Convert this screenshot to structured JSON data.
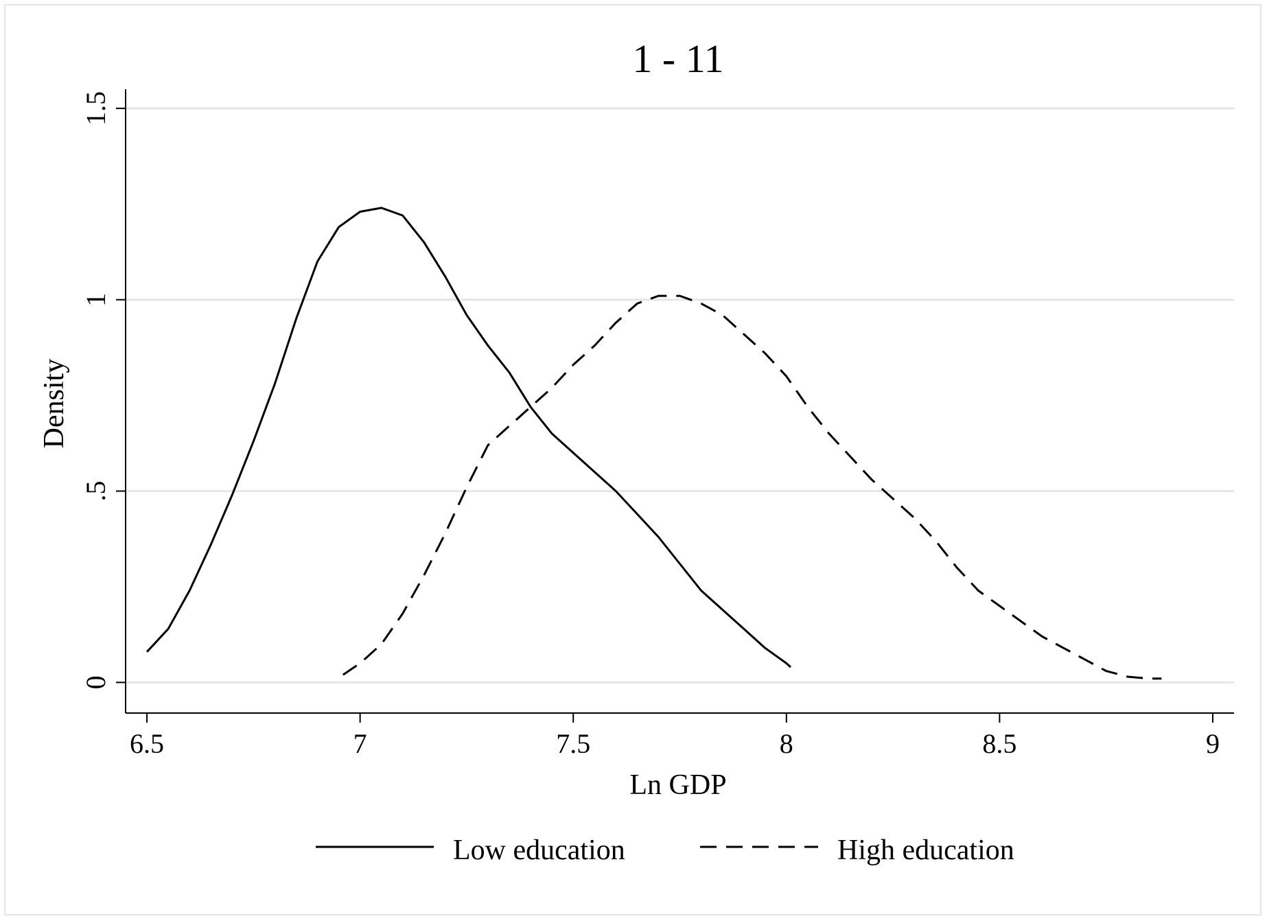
{
  "chart_data": {
    "type": "line",
    "title": "1 - 11",
    "xlabel": "Ln GDP",
    "ylabel": "Density",
    "xlim": [
      6.45,
      9.05
    ],
    "ylim": [
      -0.08,
      1.55
    ],
    "xticks": [
      6.5,
      7,
      7.5,
      8,
      8.5,
      9
    ],
    "xtick_labels": [
      "6.5",
      "7",
      "7.5",
      "8",
      "8.5",
      "9"
    ],
    "yticks": [
      0,
      0.5,
      1,
      1.5
    ],
    "ytick_labels": [
      "0",
      ".5",
      "1",
      "1.5"
    ],
    "grid": "horizontal",
    "legend_position": "bottom",
    "colors": {
      "line": "#000000",
      "grid": "#e6e6e6",
      "frame": "#e4e4e4"
    },
    "series": [
      {
        "name": "Low education",
        "style": "solid",
        "x": [
          6.5,
          6.55,
          6.6,
          6.65,
          6.7,
          6.75,
          6.8,
          6.85,
          6.9,
          6.95,
          7.0,
          7.05,
          7.1,
          7.15,
          7.2,
          7.25,
          7.3,
          7.35,
          7.4,
          7.45,
          7.5,
          7.55,
          7.6,
          7.65,
          7.7,
          7.75,
          7.8,
          7.85,
          7.9,
          7.95,
          8.0,
          8.01
        ],
        "y": [
          0.08,
          0.14,
          0.24,
          0.36,
          0.49,
          0.63,
          0.78,
          0.95,
          1.1,
          1.19,
          1.23,
          1.24,
          1.22,
          1.15,
          1.06,
          0.96,
          0.88,
          0.81,
          0.72,
          0.65,
          0.6,
          0.55,
          0.5,
          0.44,
          0.38,
          0.31,
          0.24,
          0.19,
          0.14,
          0.09,
          0.05,
          0.04
        ]
      },
      {
        "name": "High education",
        "style": "dashed",
        "x": [
          6.96,
          7.0,
          7.05,
          7.1,
          7.15,
          7.2,
          7.25,
          7.3,
          7.35,
          7.4,
          7.45,
          7.5,
          7.55,
          7.6,
          7.65,
          7.7,
          7.75,
          7.8,
          7.85,
          7.9,
          7.95,
          8.0,
          8.05,
          8.1,
          8.15,
          8.2,
          8.25,
          8.3,
          8.35,
          8.4,
          8.45,
          8.5,
          8.55,
          8.6,
          8.65,
          8.7,
          8.75,
          8.8,
          8.85,
          8.88
        ],
        "y": [
          0.02,
          0.05,
          0.1,
          0.18,
          0.28,
          0.39,
          0.51,
          0.62,
          0.67,
          0.72,
          0.77,
          0.83,
          0.88,
          0.94,
          0.99,
          1.01,
          1.01,
          0.99,
          0.96,
          0.91,
          0.86,
          0.8,
          0.72,
          0.65,
          0.59,
          0.53,
          0.48,
          0.43,
          0.37,
          0.3,
          0.24,
          0.2,
          0.16,
          0.12,
          0.09,
          0.06,
          0.03,
          0.015,
          0.01,
          0.01
        ]
      }
    ]
  }
}
